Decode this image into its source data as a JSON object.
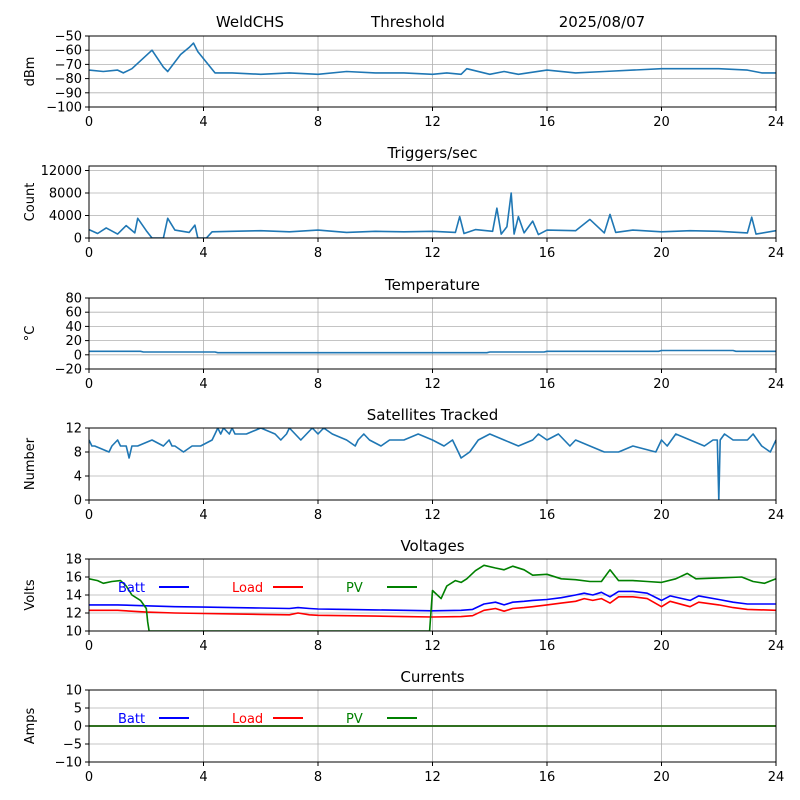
{
  "header": {
    "station": "WeldCHS",
    "mode": "Threshold",
    "date": "2025/08/07"
  },
  "colors": {
    "series_default": "#1f77b4",
    "batt": "#0000ff",
    "load": "#ff0000",
    "pv": "#008000",
    "grid": "#b0b0b0"
  },
  "chart_data": [
    {
      "id": "threshold",
      "type": "line",
      "title": "",
      "xlabel": "",
      "ylabel": "dBm",
      "xlim": [
        0,
        24
      ],
      "ylim": [
        -100,
        -50
      ],
      "xticks": [
        "0",
        "4",
        "8",
        "12",
        "16",
        "20",
        "24"
      ],
      "yticks": [
        "−50",
        "−60",
        "−70",
        "−80",
        "−90",
        "−100"
      ],
      "ytick_values": [
        -50,
        -60,
        -70,
        -80,
        -90,
        -100
      ],
      "grid": true,
      "series": [
        {
          "x": [
            0,
            0.5,
            1,
            1.2,
            1.5,
            2.2,
            2.6,
            2.75,
            3.2,
            3.5,
            3.65,
            3.8,
            4.4,
            5,
            6,
            7,
            8,
            9,
            10,
            11,
            12,
            12.5,
            13,
            13.2,
            14,
            14.5,
            15,
            16,
            17,
            18,
            19,
            20,
            21,
            22,
            23,
            23.5,
            24
          ],
          "y": [
            -74,
            -75,
            -74,
            -76,
            -73,
            -60,
            -72,
            -75,
            -63,
            -58,
            -55,
            -61,
            -76,
            -76,
            -77,
            -76,
            -77,
            -75,
            -76,
            -76,
            -77,
            -76,
            -77,
            -73,
            -77,
            -75,
            -77,
            -74,
            -76,
            -75,
            -74,
            -73,
            -73,
            -73,
            -74,
            -76,
            -76
          ]
        }
      ]
    },
    {
      "id": "triggers",
      "type": "line",
      "title": "Triggers/sec",
      "xlabel": "",
      "ylabel": "Count",
      "xlim": [
        0,
        24
      ],
      "ylim": [
        0,
        12800
      ],
      "xticks": [
        "0",
        "4",
        "8",
        "12",
        "16",
        "20",
        "24"
      ],
      "yticks": [
        "12000",
        "8000",
        "4000",
        "0"
      ],
      "ytick_values": [
        12000,
        8000,
        4000,
        0
      ],
      "grid": true,
      "series": [
        {
          "x": [
            0,
            0.3,
            0.6,
            1.0,
            1.3,
            1.6,
            1.7,
            2.0,
            2.2,
            2.6,
            2.75,
            3.0,
            3.5,
            3.7,
            3.8,
            4.1,
            4.3,
            5,
            6,
            7,
            8,
            9,
            10,
            11,
            12,
            12.8,
            12.95,
            13.1,
            13.5,
            14.1,
            14.25,
            14.4,
            14.6,
            14.75,
            14.85,
            15.0,
            15.2,
            15.5,
            15.7,
            16,
            17,
            17.5,
            18.0,
            18.2,
            18.4,
            19,
            20,
            21,
            22,
            23,
            23.15,
            23.3,
            24
          ],
          "y": [
            1500,
            800,
            1800,
            700,
            2200,
            900,
            3500,
            1300,
            0,
            0,
            3500,
            1400,
            1000,
            2300,
            0,
            0,
            1100,
            1200,
            1300,
            1100,
            1400,
            1000,
            1200,
            1100,
            1200,
            1000,
            3800,
            800,
            1500,
            1200,
            5300,
            700,
            2000,
            8000,
            700,
            3800,
            900,
            3000,
            600,
            1400,
            1300,
            3300,
            900,
            4200,
            1000,
            1400,
            1100,
            1300,
            1200,
            900,
            3700,
            700,
            1300
          ]
        }
      ]
    },
    {
      "id": "temperature",
      "type": "line",
      "title": "Temperature",
      "xlabel": "",
      "ylabel": "°C",
      "xlim": [
        0,
        24
      ],
      "ylim": [
        -20,
        80
      ],
      "xticks": [
        "0",
        "4",
        "8",
        "12",
        "16",
        "20",
        "24"
      ],
      "yticks": [
        "80",
        "60",
        "40",
        "20",
        "0",
        "−20"
      ],
      "ytick_values": [
        80,
        60,
        40,
        20,
        0,
        -20
      ],
      "grid": true,
      "series": [
        {
          "x": [
            0,
            1.8,
            1.9,
            4.4,
            4.5,
            13.9,
            14.0,
            15.9,
            16.0,
            19.9,
            20.0,
            22.5,
            22.6,
            24
          ],
          "y": [
            5,
            5,
            4,
            4,
            3,
            3,
            4,
            4,
            5,
            5,
            6,
            6,
            5,
            5
          ]
        }
      ]
    },
    {
      "id": "satellites",
      "type": "line",
      "title": "Satellites Tracked",
      "xlabel": "",
      "ylabel": "Number",
      "xlim": [
        0,
        24
      ],
      "ylim": [
        0,
        12
      ],
      "xticks": [
        "0",
        "4",
        "8",
        "12",
        "16",
        "20",
        "24"
      ],
      "yticks": [
        "12",
        "8",
        "4",
        "0"
      ],
      "ytick_values": [
        12,
        8,
        4,
        0
      ],
      "grid": true,
      "series": [
        {
          "x": [
            0,
            0.1,
            0.2,
            0.7,
            0.8,
            1.0,
            1.1,
            1.3,
            1.4,
            1.5,
            1.7,
            2.2,
            2.6,
            2.8,
            2.9,
            3.0,
            3.3,
            3.6,
            3.9,
            4.3,
            4.4,
            4.5,
            4.6,
            4.7,
            4.9,
            5.0,
            5.1,
            5.3,
            5.5,
            6.0,
            6.5,
            6.7,
            6.9,
            7.0,
            7.4,
            7.8,
            8.0,
            8.2,
            8.5,
            9.0,
            9.3,
            9.4,
            9.6,
            9.8,
            10.2,
            10.5,
            11.0,
            11.5,
            12.0,
            12.4,
            12.7,
            12.9,
            13.0,
            13.3,
            13.6,
            14.0,
            14.5,
            15.0,
            15.5,
            15.7,
            16.0,
            16.4,
            16.8,
            17.0,
            17.5,
            18.0,
            18.5,
            19.0,
            19.8,
            20.0,
            20.2,
            20.5,
            21.0,
            21.5,
            21.8,
            21.95,
            22.0,
            22.05,
            22.2,
            22.5,
            23.0,
            23.2,
            23.5,
            23.8,
            24
          ],
          "y": [
            10,
            9,
            9,
            8,
            9,
            10,
            9,
            9,
            7,
            9,
            9,
            10,
            9,
            10,
            9,
            9,
            8,
            9,
            9,
            10,
            11,
            12,
            11,
            12,
            11,
            12,
            11,
            11,
            11,
            12,
            11,
            10,
            11,
            12,
            10,
            12,
            11,
            12,
            11,
            10,
            9,
            10,
            11,
            10,
            9,
            10,
            10,
            11,
            10,
            9,
            10,
            8,
            7,
            8,
            10,
            11,
            10,
            9,
            10,
            11,
            10,
            11,
            9,
            10,
            9,
            8,
            8,
            9,
            8,
            10,
            9,
            11,
            10,
            9,
            10,
            10,
            0,
            10,
            11,
            10,
            10,
            11,
            9,
            8,
            10
          ]
        }
      ]
    },
    {
      "id": "voltages",
      "type": "line",
      "title": "Voltages",
      "xlabel": "",
      "ylabel": "Volts",
      "xlim": [
        0,
        24
      ],
      "ylim": [
        10,
        18
      ],
      "xticks": [
        "0",
        "4",
        "8",
        "12",
        "16",
        "20",
        "24"
      ],
      "yticks": [
        "18",
        "16",
        "14",
        "12",
        "10"
      ],
      "ytick_values": [
        18,
        16,
        14,
        12,
        10
      ],
      "grid": true,
      "legend": [
        "Batt",
        "Load",
        "PV"
      ],
      "legend_position": "top-left",
      "series": [
        {
          "name": "Batt",
          "color_key": "batt",
          "x": [
            0,
            1,
            2,
            3,
            4,
            5,
            6,
            7,
            7.3,
            7.7,
            8,
            9,
            10,
            11,
            12,
            13,
            13.4,
            13.8,
            14.2,
            14.5,
            14.8,
            15.2,
            15.5,
            16,
            16.5,
            17,
            17.3,
            17.6,
            17.9,
            18.2,
            18.5,
            19,
            19.5,
            20,
            20.3,
            21,
            21.3,
            22,
            22.5,
            23,
            24
          ],
          "y": [
            12.9,
            12.9,
            12.8,
            12.7,
            12.65,
            12.6,
            12.55,
            12.5,
            12.6,
            12.5,
            12.45,
            12.4,
            12.35,
            12.3,
            12.25,
            12.3,
            12.4,
            13,
            13.2,
            12.9,
            13.2,
            13.3,
            13.4,
            13.5,
            13.7,
            14,
            14.2,
            14.0,
            14.3,
            13.8,
            14.4,
            14.4,
            14.2,
            13.4,
            13.9,
            13.4,
            13.9,
            13.5,
            13.2,
            13,
            13
          ]
        },
        {
          "name": "Load",
          "color_key": "load",
          "x": [
            0,
            1,
            2,
            3,
            4,
            5,
            6,
            7,
            7.3,
            7.7,
            8,
            9,
            10,
            11,
            12,
            13,
            13.4,
            13.8,
            14.2,
            14.5,
            14.8,
            15.2,
            15.5,
            16,
            16.5,
            17,
            17.3,
            17.6,
            17.9,
            18.2,
            18.5,
            19,
            19.5,
            20,
            20.3,
            21,
            21.3,
            22,
            22.5,
            23,
            24
          ],
          "y": [
            12.3,
            12.3,
            12.1,
            12.0,
            11.95,
            11.9,
            11.85,
            11.8,
            12.0,
            11.8,
            11.75,
            11.7,
            11.65,
            11.6,
            11.55,
            11.6,
            11.7,
            12.3,
            12.5,
            12.2,
            12.5,
            12.6,
            12.7,
            12.9,
            13.1,
            13.3,
            13.6,
            13.4,
            13.6,
            13.1,
            13.8,
            13.8,
            13.6,
            12.7,
            13.3,
            12.7,
            13.2,
            12.9,
            12.6,
            12.4,
            12.3
          ]
        },
        {
          "name": "PV",
          "color_key": "pv",
          "x": [
            0,
            0.3,
            0.5,
            0.8,
            1.1,
            1.3,
            1.5,
            1.8,
            2.0,
            2.05,
            2.1,
            11.9,
            12.0,
            12.3,
            12.5,
            12.8,
            13.0,
            13.2,
            13.5,
            13.8,
            14.2,
            14.5,
            14.8,
            15.2,
            15.5,
            16,
            16.5,
            17,
            17.5,
            17.9,
            18.2,
            18.5,
            19,
            19.5,
            20,
            20.5,
            20.9,
            21.2,
            22,
            22.8,
            23.2,
            23.6,
            24
          ],
          "y": [
            15.8,
            15.6,
            15.3,
            15.5,
            15.6,
            15.0,
            14.0,
            13.4,
            12.5,
            11.0,
            10.0,
            10.0,
            14.5,
            13.6,
            15.0,
            15.6,
            15.4,
            15.8,
            16.7,
            17.3,
            17.0,
            16.8,
            17.2,
            16.8,
            16.2,
            16.3,
            15.8,
            15.7,
            15.5,
            15.5,
            16.8,
            15.6,
            15.6,
            15.5,
            15.4,
            15.8,
            16.4,
            15.8,
            15.9,
            16.0,
            15.5,
            15.3,
            15.8
          ]
        }
      ]
    },
    {
      "id": "currents",
      "type": "line",
      "title": "Currents",
      "xlabel": "",
      "ylabel": "Amps",
      "xlim": [
        0,
        24
      ],
      "ylim": [
        -10,
        10
      ],
      "xticks": [
        "0",
        "4",
        "8",
        "12",
        "16",
        "20",
        "24"
      ],
      "yticks": [
        "10",
        "5",
        "0",
        "−5",
        "−10"
      ],
      "ytick_values": [
        10,
        5,
        0,
        -5,
        -10
      ],
      "grid": true,
      "legend": [
        "Batt",
        "Load",
        "PV"
      ],
      "legend_position": "top-left",
      "series": [
        {
          "name": "Batt",
          "color_key": "batt",
          "x": [
            0,
            24
          ],
          "y": [
            0,
            0
          ]
        },
        {
          "name": "Load",
          "color_key": "load",
          "x": [
            0,
            24
          ],
          "y": [
            0,
            0
          ]
        },
        {
          "name": "PV",
          "color_key": "pv",
          "x": [
            0,
            24
          ],
          "y": [
            0,
            0
          ]
        }
      ]
    }
  ]
}
